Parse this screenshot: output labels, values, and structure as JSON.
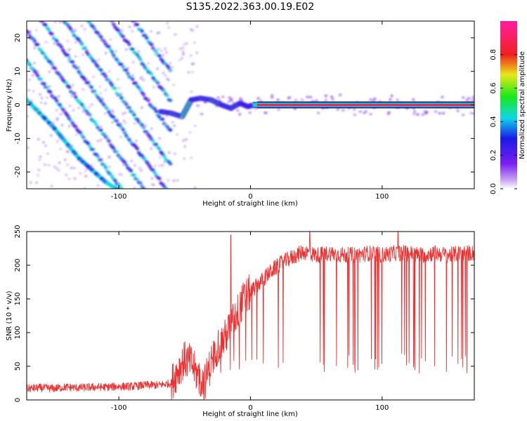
{
  "title": "S135.2022.363.00.19.E02",
  "colors": {
    "snr_line": "#f03030",
    "frame": "#000000"
  },
  "chart_data": [
    {
      "type": "heatmap",
      "xlabel": "Height of straight line (km)",
      "ylabel": "Frequency (Hz)",
      "xlim": [
        -170,
        170
      ],
      "ylim": [
        -25,
        25
      ],
      "xticks": [
        -100,
        0,
        100
      ],
      "xtick_labels": [
        "-100",
        "0",
        "100"
      ],
      "yticks": [
        20,
        10,
        0,
        -10,
        -20
      ],
      "ytick_labels": [
        "20",
        "10",
        "0",
        "-10",
        "-20"
      ],
      "colorscale": "hsv-rainbow (white-purple-blue-cyan-green-yellow-red-magenta)",
      "colorbar": {
        "label": "Normalized spectral amplitude",
        "range": [
          0,
          1
        ],
        "ticks": [
          0.0,
          0.2,
          0.4,
          0.6,
          0.8
        ],
        "tick_labels": [
          "0.0",
          "0.2",
          "0.4",
          "0.6",
          "0.8"
        ]
      },
      "features": {
        "diagonal_stripes": {
          "x_range": [
            -170,
            -60
          ],
          "slope_hz_per_km": -0.53,
          "spacing_hz": 9.2,
          "intercepts_at_x0_hz": [
            -77,
            -68,
            -59,
            -50,
            -40,
            -31,
            -22
          ]
        },
        "strong_diagonal": {
          "x": [
            -170,
            -150,
            -130,
            -110,
            -90,
            -80,
            -78
          ],
          "y": [
            1.5,
            -6.5,
            -16,
            -23,
            -28,
            -31,
            -32
          ]
        },
        "transition_segment": {
          "x": [
            -68,
            -60,
            -52,
            -45,
            -38,
            -30,
            -22,
            -15,
            -8,
            -2,
            3
          ],
          "y": [
            -2,
            -2.5,
            -3.5,
            1.5,
            2,
            1.5,
            0,
            -1,
            0.5,
            -0.5,
            0
          ]
        },
        "steady_line": {
          "x_range": [
            5,
            170
          ],
          "y": 0,
          "amplitude": 0.9
        }
      }
    },
    {
      "type": "line",
      "xlabel": "Height of straight line (km)",
      "ylabel": "SNR (10 * v/v)",
      "xlim": [
        -170,
        170
      ],
      "ylim": [
        0,
        250
      ],
      "xticks": [
        -100,
        0,
        100
      ],
      "xtick_labels": [
        "-100",
        "0",
        "100"
      ],
      "yticks": [
        0,
        50,
        100,
        150,
        200,
        250
      ],
      "ytick_labels": [
        "0",
        "50",
        "100",
        "150",
        "200",
        "250"
      ],
      "series": [
        {
          "color": "#f03030",
          "x": [
            -170,
            -160,
            -150,
            -140,
            -130,
            -120,
            -110,
            -100,
            -90,
            -80,
            -70,
            -60,
            -55,
            -50,
            -45,
            -40,
            -35,
            -30,
            -25,
            -20,
            -15,
            -10,
            -5,
            0,
            5,
            10,
            15,
            20,
            25,
            30,
            40,
            50,
            60,
            70,
            80,
            90,
            100,
            110,
            120,
            130,
            140,
            150,
            160,
            170
          ],
          "y": [
            17,
            18,
            17,
            19,
            18,
            19,
            19,
            20,
            20,
            22,
            22,
            25,
            45,
            60,
            55,
            35,
            25,
            55,
            80,
            90,
            110,
            130,
            150,
            160,
            170,
            180,
            190,
            198,
            205,
            210,
            220,
            215,
            218,
            215,
            215,
            218,
            215,
            218,
            218,
            215,
            218,
            215,
            218,
            218
          ]
        }
      ],
      "annotations": {
        "spikes": [
          {
            "x": -15,
            "y": 245
          },
          {
            "x": 45,
            "y": 250
          },
          {
            "x": 112,
            "y": 250
          }
        ],
        "dropouts_minimum_snr": 40
      }
    }
  ]
}
